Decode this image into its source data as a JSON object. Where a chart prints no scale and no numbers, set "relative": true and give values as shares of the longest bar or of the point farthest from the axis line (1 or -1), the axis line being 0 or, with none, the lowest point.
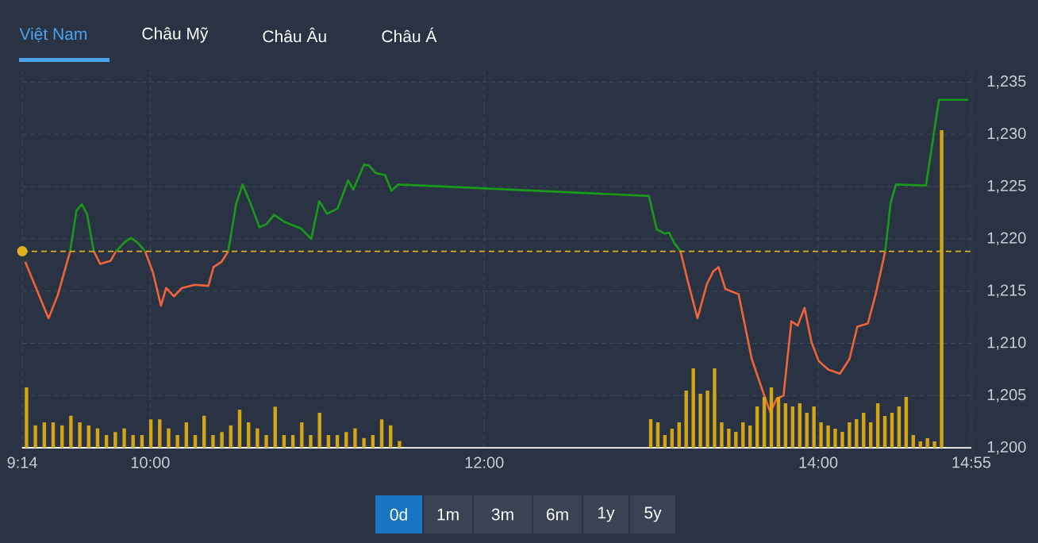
{
  "chart_data": [
    {
      "type": "line",
      "annotations": [
        "Việt Nam",
        "Châu Mỹ",
        "Châu Âu",
        "Châu Á",
        "0d",
        "1m",
        "3m",
        "6m",
        "1y",
        "5y"
      ],
      "xlim": [
        9.2333,
        14.9167
      ],
      "ylim": [
        1200,
        1236
      ],
      "xticks": [
        {
          "value": 9.2333,
          "label": "9:14"
        },
        {
          "value": 10,
          "label": "10:00"
        },
        {
          "value": 12,
          "label": "12:00"
        },
        {
          "value": 14,
          "label": "14:00"
        },
        {
          "value": 14.9167,
          "label": "14:55"
        }
      ],
      "yticks": [
        {
          "value": 1200,
          "label": "1,200"
        },
        {
          "value": 1205,
          "label": "1,205"
        },
        {
          "value": 1210,
          "label": "1,210"
        },
        {
          "value": 1215,
          "label": "1,215"
        },
        {
          "value": 1220,
          "label": "1,220"
        },
        {
          "value": 1225,
          "label": "1,225"
        },
        {
          "value": 1230,
          "label": "1,230"
        },
        {
          "value": 1235,
          "label": "1,235"
        }
      ],
      "grid": true,
      "ref_lines": [
        {
          "axis": "y",
          "value": 1218.8,
          "color": "#e0b020",
          "line_style": "dashed"
        }
      ],
      "series": [
        {
          "color": "#f0643c",
          "x": [
            9.251,
            9.391,
            9.448,
            9.52,
            9.59,
            9.662,
            9.7,
            9.763,
            9.794,
            9.88,
            9.969,
            10.016,
            10.064,
            10.095,
            10.142,
            10.19,
            10.268,
            10.348,
            10.379,
            10.427,
            10.467,
            12.0,
            13.175,
            13.223,
            13.277,
            13.334,
            13.372,
            13.403,
            13.444,
            13.523,
            13.602,
            13.666,
            13.713,
            13.751,
            13.792,
            13.839,
            13.877,
            13.918,
            13.96,
            14.003,
            14.06,
            14.13,
            14.187,
            14.234,
            14.297,
            14.344,
            14.401
          ],
          "values": [
            1217.8,
            1212.4,
            1214.7,
            1218.8,
            null,
            1218.8,
            1217.6,
            1217.9,
            1218.8,
            null,
            1218.8,
            1216.8,
            1213.6,
            1215.3,
            1214.5,
            1215.3,
            1215.6,
            1215.5,
            1217.3,
            1217.8,
            1218.8,
            null,
            1218.8,
            1215.7,
            1212.4,
            1215.7,
            1216.9,
            1217.3,
            1215.2,
            1214.7,
            1208.5,
            1205.5,
            1203.4,
            1204.7,
            1205.0,
            1212.1,
            1211.7,
            1213.4,
            1210.1,
            1208.3,
            1207.5,
            1207.1,
            1208.5,
            1211.6,
            1211.9,
            1214.7,
            1218.8
          ]
        },
        {
          "color": "#1a9a1a",
          "x": [
            9.52,
            9.558,
            9.59,
            9.621,
            9.662,
            9.73,
            9.794,
            9.842,
            9.884,
            9.927,
            9.969,
            10.2,
            10.467,
            10.515,
            10.553,
            10.6,
            10.654,
            10.695,
            10.742,
            10.806,
            10.901,
            10.964,
            11.012,
            11.059,
            11.122,
            11.185,
            11.216,
            11.28,
            11.311,
            11.349,
            11.406,
            11.444,
            11.485,
            12.986,
            13.033,
            13.081,
            13.106,
            13.138,
            13.175,
            13.8,
            14.401,
            14.433,
            14.465,
            14.645,
            14.723,
            14.898
          ],
          "values": [
            1218.8,
            1222.7,
            1223.3,
            1222.4,
            1218.8,
            null,
            1218.8,
            1219.6,
            1220.1,
            1219.6,
            1218.8,
            null,
            1218.8,
            1223.4,
            1225.2,
            1223.4,
            1221.1,
            1221.4,
            1222.3,
            1221.6,
            1221.0,
            1220.0,
            1223.6,
            1222.4,
            1222.9,
            1225.6,
            1224.7,
            1227.1,
            1227.0,
            1226.3,
            1226.1,
            1224.6,
            1225.2,
            1224.1,
            1220.9,
            1220.5,
            1220.6,
            1219.6,
            1218.8,
            null,
            1218.8,
            1223.4,
            1225.2,
            1225.1,
            1233.3,
            1233.3
          ]
        }
      ]
    },
    {
      "type": "bar",
      "relative": true,
      "color": "#d4a514",
      "categories": [
        null,
        null,
        null,
        null,
        null,
        null,
        null,
        null,
        null,
        null,
        null,
        null,
        null,
        null,
        null,
        null,
        null,
        null,
        null,
        null,
        null,
        null,
        null,
        null,
        null,
        null,
        null,
        null,
        null,
        null,
        null,
        null,
        null,
        null,
        null,
        null,
        null,
        null,
        null,
        null,
        null,
        null,
        null
      ],
      "values": [
        1,
        0.37,
        0.42,
        0.42,
        0.37,
        0.53,
        0.42,
        0.37,
        0.32,
        0.21,
        0.26,
        0.32,
        0.21,
        0.21,
        0.47,
        0.47,
        0.32,
        0.21,
        0.42,
        0.21,
        0.53,
        0.21,
        0.26,
        0.37,
        0.63,
        0.42,
        0.32,
        0.21,
        0.68,
        0.21,
        0.21,
        0.42,
        0.21,
        0.58,
        0.21,
        0.21,
        0.26,
        0.32,
        0.16,
        0.21,
        0.47,
        0.37,
        0.11
      ]
    },
    {
      "type": "bar",
      "relative": true,
      "color": "#d4a514",
      "categories": [
        null,
        null,
        null,
        null,
        null,
        null,
        null,
        null,
        null,
        null,
        null,
        null,
        null,
        null,
        null,
        null,
        null,
        null,
        null,
        null,
        null,
        null,
        null,
        null,
        null,
        null,
        null,
        null,
        null,
        null,
        null,
        null,
        null,
        null,
        null,
        null,
        null,
        null,
        null,
        null,
        null,
        null
      ],
      "values": [
        0.09,
        0.08,
        0.04,
        0.06,
        0.08,
        0.18,
        0.25,
        0.17,
        0.18,
        0.25,
        0.08,
        0.06,
        0.05,
        0.08,
        0.07,
        0.13,
        0.16,
        0.19,
        0.16,
        0.14,
        0.13,
        0.14,
        0.11,
        0.13,
        0.08,
        0.07,
        0.06,
        0.05,
        0.08,
        0.09,
        0.11,
        0.08,
        0.14,
        0.1,
        0.11,
        0.13,
        0.16,
        0.04,
        0.02,
        0.03,
        0.02,
        1
      ]
    }
  ]
}
